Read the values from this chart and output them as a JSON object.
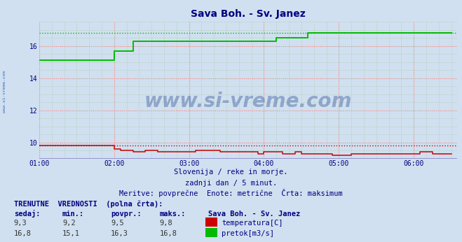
{
  "title": "Sava Boh. - Sv. Janez",
  "title_color": "#000080",
  "bg_color": "#d0e0f0",
  "plot_bg_color": "#d0e0f0",
  "ylim": [
    9.0,
    17.5
  ],
  "yticks": [
    10,
    12,
    14,
    16
  ],
  "xlim_hours": [
    1.0,
    6.583
  ],
  "xtick_hours": [
    1,
    2,
    3,
    4,
    5,
    6
  ],
  "xtick_labels": [
    "01:00",
    "02:00",
    "03:00",
    "04:00",
    "05:00",
    "06:00"
  ],
  "grid_color_major": "#ff8888",
  "grid_color_minor": "#aaccaa",
  "watermark_text": "www.si-vreme.com",
  "watermark_color": "#1a3a8a",
  "watermark_alpha": 0.35,
  "footnote1": "Slovenija / reke in morje.",
  "footnote2": "zadnji dan / 5 minut.",
  "footnote3": "Meritve: povprečne  Enote: metrične  Črta: maksimum",
  "footnote_color": "#000080",
  "table_header": "TRENUTNE  VREDNOSTI  (polna črta):",
  "table_cols": [
    "sedaj:",
    "min.:",
    "povpr.:",
    "maks.:",
    "Sava Boh. - Sv. Janez"
  ],
  "table_row1": [
    "9,3",
    "9,2",
    "9,5",
    "9,8"
  ],
  "table_row2": [
    "16,8",
    "15,1",
    "16,3",
    "16,8"
  ],
  "legend_temp": "temperatura[C]",
  "legend_pretok": "pretok[m3/s]",
  "temp_color": "#cc0000",
  "pretok_color": "#00bb00",
  "sidebar_text": "www.si-vreme.com",
  "sidebar_color": "#3366cc",
  "temp_data_x": [
    1.0,
    1.083,
    1.167,
    1.25,
    1.333,
    1.417,
    1.5,
    1.583,
    1.667,
    1.75,
    1.833,
    1.917,
    2.0,
    2.083,
    2.167,
    2.25,
    2.333,
    2.417,
    2.5,
    2.583,
    2.667,
    2.75,
    2.833,
    2.917,
    3.0,
    3.083,
    3.167,
    3.25,
    3.333,
    3.417,
    3.5,
    3.583,
    3.667,
    3.75,
    3.833,
    3.917,
    4.0,
    4.083,
    4.167,
    4.25,
    4.333,
    4.417,
    4.5,
    4.583,
    4.667,
    4.75,
    4.833,
    4.917,
    5.0,
    5.083,
    5.167,
    5.25,
    5.333,
    5.417,
    5.5,
    5.583,
    5.667,
    5.75,
    5.833,
    5.917,
    6.0,
    6.083,
    6.167,
    6.25,
    6.333,
    6.417,
    6.5
  ],
  "temp_data_y": [
    9.8,
    9.8,
    9.8,
    9.8,
    9.8,
    9.8,
    9.8,
    9.8,
    9.8,
    9.8,
    9.8,
    9.8,
    9.6,
    9.5,
    9.5,
    9.4,
    9.4,
    9.5,
    9.5,
    9.4,
    9.4,
    9.4,
    9.4,
    9.4,
    9.4,
    9.5,
    9.5,
    9.5,
    9.5,
    9.4,
    9.4,
    9.4,
    9.4,
    9.4,
    9.4,
    9.3,
    9.4,
    9.4,
    9.4,
    9.3,
    9.3,
    9.4,
    9.3,
    9.3,
    9.3,
    9.3,
    9.3,
    9.2,
    9.2,
    9.2,
    9.3,
    9.3,
    9.3,
    9.3,
    9.3,
    9.3,
    9.3,
    9.3,
    9.3,
    9.3,
    9.3,
    9.4,
    9.4,
    9.3,
    9.3,
    9.3,
    9.3
  ],
  "pretok_data_x": [
    1.0,
    1.333,
    1.917,
    2.0,
    2.083,
    2.25,
    2.333,
    4.083,
    4.167,
    4.417,
    4.583,
    6.5
  ],
  "pretok_data_y": [
    15.1,
    15.1,
    15.1,
    15.7,
    15.7,
    16.3,
    16.3,
    16.3,
    16.5,
    16.5,
    16.8,
    16.8
  ],
  "temp_max_y": 9.8,
  "pretok_max_y": 16.8
}
